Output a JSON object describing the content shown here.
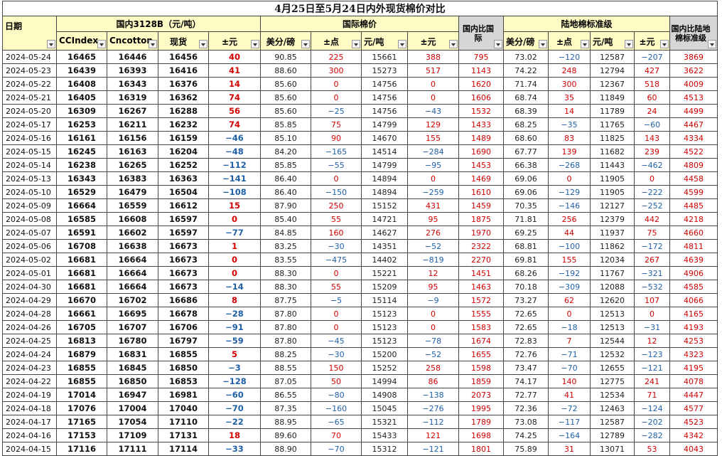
{
  "title": "4月25日至5月24日内外现货棉价对比",
  "groups": {
    "domestic": "国内3128B（元/吨）",
    "intl": "国际棉价",
    "intl_diff": "国内比国际",
    "land": "陆地棉标准级",
    "land_diff": "国内比陆地棉标准级"
  },
  "headers": {
    "date": "日期",
    "ccindex": "CCIndex",
    "cncotton": "Cncotton",
    "spot": "现货",
    "pm1": "±元",
    "usd1": "美分/磅",
    "pts1": "±点",
    "yuan1": "元/吨",
    "pm2": "±元",
    "usd2": "美分/磅",
    "pts2": "±点",
    "yuan2": "元/吨",
    "pm3": "±元"
  },
  "colors": {
    "positive": "#d40000",
    "negative": "#1f5fa8",
    "yellow_header": "#fffbc4",
    "gray_header": "#d6d6d6"
  },
  "rows": [
    [
      "2024-05-24",
      "16465",
      "16446",
      "16456",
      "40",
      "90.85",
      "225",
      "15661",
      "388",
      "795",
      "73.02",
      "−120",
      "12587",
      "−207",
      "3869"
    ],
    [
      "2024-05-23",
      "16439",
      "16393",
      "16416",
      "41",
      "88.60",
      "300",
      "15273",
      "517",
      "1143",
      "74.22",
      "248",
      "12794",
      "427",
      "3622"
    ],
    [
      "2024-05-22",
      "16408",
      "16343",
      "16376",
      "14",
      "85.60",
      "0",
      "14756",
      "0",
      "1620",
      "71.74",
      "300",
      "12367",
      "518",
      "4009"
    ],
    [
      "2024-05-21",
      "16405",
      "16319",
      "16362",
      "74",
      "85.60",
      "0",
      "14756",
      "0",
      "1606",
      "68.74",
      "35",
      "11849",
      "60",
      "4513"
    ],
    [
      "2024-05-20",
      "16309",
      "16267",
      "16288",
      "56",
      "85.60",
      "−25",
      "14756",
      "−43",
      "1532",
      "68.39",
      "14",
      "11789",
      "24",
      "4499"
    ],
    [
      "2024-05-17",
      "16253",
      "16211",
      "16232",
      "74",
      "85.85",
      "75",
      "14799",
      "129",
      "1433",
      "68.25",
      "−35",
      "11765",
      "−60",
      "4467"
    ],
    [
      "2024-05-16",
      "16161",
      "16156",
      "16159",
      "−46",
      "85.10",
      "90",
      "14670",
      "155",
      "1489",
      "68.60",
      "83",
      "11825",
      "143",
      "4334"
    ],
    [
      "2024-05-15",
      "16245",
      "16163",
      "16204",
      "−48",
      "84.20",
      "−165",
      "14514",
      "−284",
      "1690",
      "67.77",
      "139",
      "11682",
      "239",
      "4522"
    ],
    [
      "2024-05-14",
      "16238",
      "16265",
      "16252",
      "−112",
      "85.85",
      "−55",
      "14799",
      "−95",
      "1453",
      "66.38",
      "−268",
      "11443",
      "−462",
      "4809"
    ],
    [
      "2024-05-13",
      "16343",
      "16383",
      "16363",
      "−141",
      "86.40",
      "0",
      "14894",
      "0",
      "1469",
      "69.06",
      "0",
      "11905",
      "0",
      "4458"
    ],
    [
      "2024-05-10",
      "16529",
      "16479",
      "16504",
      "−108",
      "86.40",
      "−150",
      "14894",
      "−259",
      "1610",
      "69.06",
      "−129",
      "11905",
      "−222",
      "4599"
    ],
    [
      "2024-05-09",
      "16664",
      "16559",
      "16612",
      "15",
      "87.90",
      "250",
      "15152",
      "431",
      "1459",
      "70.35",
      "−146",
      "12127",
      "−252",
      "4485"
    ],
    [
      "2024-05-08",
      "16585",
      "16608",
      "16597",
      "0",
      "85.40",
      "55",
      "14721",
      "95",
      "1875",
      "71.81",
      "256",
      "12379",
      "442",
      "4218"
    ],
    [
      "2024-05-07",
      "16591",
      "16602",
      "16597",
      "−77",
      "84.85",
      "160",
      "14627",
      "276",
      "1970",
      "69.25",
      "44",
      "11937",
      "75",
      "4660"
    ],
    [
      "2024-05-06",
      "16708",
      "16638",
      "16673",
      "1",
      "83.25",
      "−30",
      "14351",
      "−52",
      "2322",
      "68.81",
      "−100",
      "11862",
      "−172",
      "4811"
    ],
    [
      "2024-05-02",
      "16681",
      "16664",
      "16673",
      "0",
      "83.55",
      "−475",
      "14402",
      "−819",
      "2270",
      "69.81",
      "155",
      "12034",
      "267",
      "4639"
    ],
    [
      "2024-05-01",
      "16681",
      "16664",
      "16673",
      "0",
      "88.30",
      "0",
      "15221",
      "12",
      "1451",
      "68.26",
      "−192",
      "11767",
      "−321",
      "4906"
    ],
    [
      "2024-04-30",
      "16681",
      "16664",
      "16673",
      "−14",
      "88.30",
      "55",
      "15209",
      "95",
      "1463",
      "70.18",
      "−309",
      "12088",
      "−532",
      "4585"
    ],
    [
      "2024-04-29",
      "16670",
      "16702",
      "16686",
      "8",
      "87.75",
      "−5",
      "15114",
      "−9",
      "1572",
      "73.27",
      "62",
      "12620",
      "107",
      "4066"
    ],
    [
      "2024-04-28",
      "16661",
      "16695",
      "16678",
      "−28",
      "87.80",
      "0",
      "15123",
      "0",
      "1555",
      "72.65",
      "0",
      "12513",
      "0",
      "4165"
    ],
    [
      "2024-04-26",
      "16705",
      "16707",
      "16706",
      "−91",
      "87.80",
      "0",
      "15123",
      "0",
      "1583",
      "72.65",
      "−18",
      "12513",
      "−31",
      "4193"
    ],
    [
      "2024-04-25",
      "16813",
      "16780",
      "16797",
      "−59",
      "87.80",
      "−45",
      "15123",
      "−78",
      "1674",
      "72.83",
      "7",
      "12544",
      "12",
      "4253"
    ],
    [
      "2024-04-24",
      "16879",
      "16831",
      "16855",
      "5",
      "88.25",
      "−30",
      "15200",
      "−52",
      "1655",
      "72.76",
      "−71",
      "12532",
      "−123",
      "4323"
    ],
    [
      "2024-04-23",
      "16855",
      "16845",
      "16850",
      "−3",
      "88.55",
      "150",
      "15252",
      "258",
      "1598",
      "73.47",
      "−70",
      "12655",
      "−121",
      "4195"
    ],
    [
      "2024-04-22",
      "16855",
      "16850",
      "16853",
      "−128",
      "87.05",
      "50",
      "14994",
      "86",
      "1859",
      "74.17",
      "140",
      "12775",
      "241",
      "4078"
    ],
    [
      "2024-04-19",
      "17014",
      "16947",
      "16981",
      "−60",
      "86.55",
      "−80",
      "14908",
      "−138",
      "2073",
      "72.77",
      "41",
      "12534",
      "71",
      "4447"
    ],
    [
      "2024-04-18",
      "17076",
      "17004",
      "17040",
      "−70",
      "87.35",
      "−160",
      "15045",
      "−276",
      "1995",
      "72.36",
      "−72",
      "12463",
      "−124",
      "4577"
    ],
    [
      "2024-04-17",
      "17165",
      "17054",
      "17110",
      "−22",
      "88.95",
      "−65",
      "15321",
      "−112",
      "1789",
      "73.08",
      "−117",
      "12587",
      "−202",
      "4523"
    ],
    [
      "2024-04-16",
      "17153",
      "17109",
      "17131",
      "18",
      "89.60",
      "70",
      "15433",
      "121",
      "1698",
      "74.25",
      "−164",
      "12789",
      "−282",
      "4342"
    ],
    [
      "2024-04-15",
      "17116",
      "17111",
      "17114",
      "−33",
      "88.90",
      "−70",
      "15312",
      "−121",
      "1801",
      "75.89",
      "31",
      "13071",
      "53",
      "4043"
    ]
  ]
}
